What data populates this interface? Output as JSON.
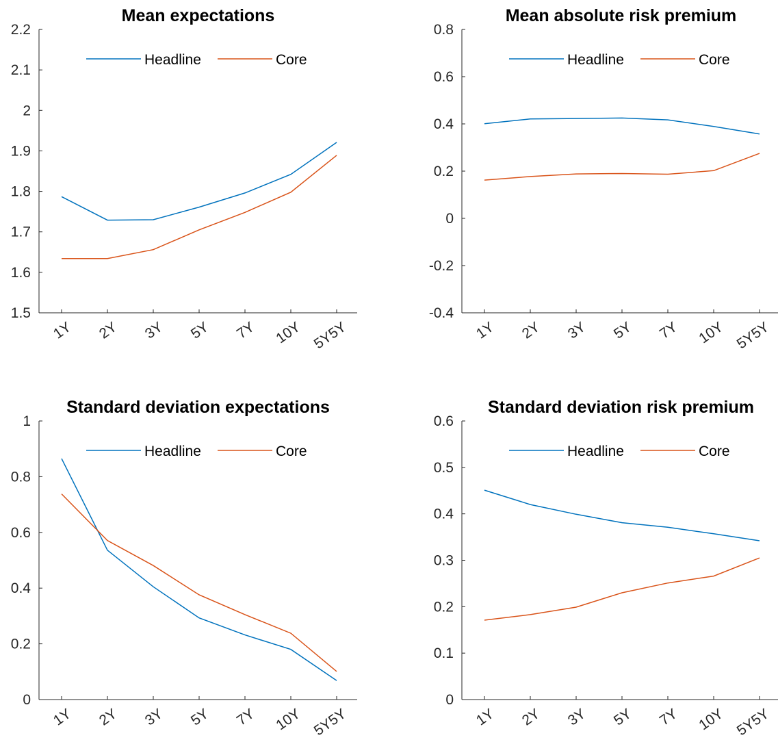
{
  "chart_data": [
    {
      "type": "line",
      "title": "Mean expectations",
      "xlabel": "",
      "ylabel": "",
      "categories": [
        "1Y",
        "2Y",
        "3Y",
        "5Y",
        "7Y",
        "10Y",
        "5Y5Y"
      ],
      "series": [
        {
          "name": "Headline",
          "color": "#0072BD",
          "values": [
            1.787,
            1.729,
            1.73,
            1.761,
            1.796,
            1.842,
            1.921
          ]
        },
        {
          "name": "Core",
          "color": "#D95319",
          "values": [
            1.634,
            1.634,
            1.656,
            1.705,
            1.748,
            1.798,
            1.889
          ]
        }
      ],
      "ylim": [
        1.5,
        2.2
      ],
      "yticks": [
        "1.5",
        "1.6",
        "1.7",
        "1.8",
        "1.9",
        "2",
        "2.1",
        "2.2"
      ],
      "legend": "top-center",
      "grid": false
    },
    {
      "type": "line",
      "title": "Mean absolute risk premium",
      "xlabel": "",
      "ylabel": "",
      "categories": [
        "1Y",
        "2Y",
        "3Y",
        "5Y",
        "7Y",
        "10Y",
        "5Y5Y"
      ],
      "series": [
        {
          "name": "Headline",
          "color": "#0072BD",
          "values": [
            0.401,
            0.421,
            0.423,
            0.425,
            0.417,
            0.389,
            0.357
          ]
        },
        {
          "name": "Core",
          "color": "#D95319",
          "values": [
            0.162,
            0.177,
            0.188,
            0.19,
            0.187,
            0.202,
            0.275
          ]
        }
      ],
      "ylim": [
        -0.4,
        0.8
      ],
      "yticks": [
        "-0.4",
        "-0.2",
        "0",
        "0.2",
        "0.4",
        "0.6",
        "0.8"
      ],
      "legend": "top-center",
      "grid": false
    },
    {
      "type": "line",
      "title": "Standard deviation expectations",
      "xlabel": "",
      "ylabel": "",
      "categories": [
        "1Y",
        "2Y",
        "3Y",
        "5Y",
        "7Y",
        "10Y",
        "5Y5Y"
      ],
      "series": [
        {
          "name": "Headline",
          "color": "#0072BD",
          "values": [
            0.865,
            0.536,
            0.405,
            0.293,
            0.232,
            0.18,
            0.068
          ]
        },
        {
          "name": "Core",
          "color": "#D95319",
          "values": [
            0.738,
            0.571,
            0.481,
            0.376,
            0.305,
            0.238,
            0.101
          ]
        }
      ],
      "ylim": [
        0,
        1
      ],
      "yticks": [
        "0",
        "0.2",
        "0.4",
        "0.6",
        "0.8",
        "1"
      ],
      "legend": "top-center",
      "grid": false
    },
    {
      "type": "line",
      "title": "Standard deviation risk premium",
      "xlabel": "",
      "ylabel": "",
      "categories": [
        "1Y",
        "2Y",
        "3Y",
        "5Y",
        "7Y",
        "10Y",
        "5Y5Y"
      ],
      "series": [
        {
          "name": "Headline",
          "color": "#0072BD",
          "values": [
            0.451,
            0.42,
            0.399,
            0.381,
            0.371,
            0.357,
            0.342
          ]
        },
        {
          "name": "Core",
          "color": "#D95319",
          "values": [
            0.171,
            0.183,
            0.199,
            0.23,
            0.251,
            0.266,
            0.305
          ]
        }
      ],
      "ylim": [
        0,
        0.6
      ],
      "yticks": [
        "0",
        "0.1",
        "0.2",
        "0.3",
        "0.4",
        "0.5",
        "0.6"
      ],
      "legend": "top-center",
      "grid": false
    }
  ]
}
